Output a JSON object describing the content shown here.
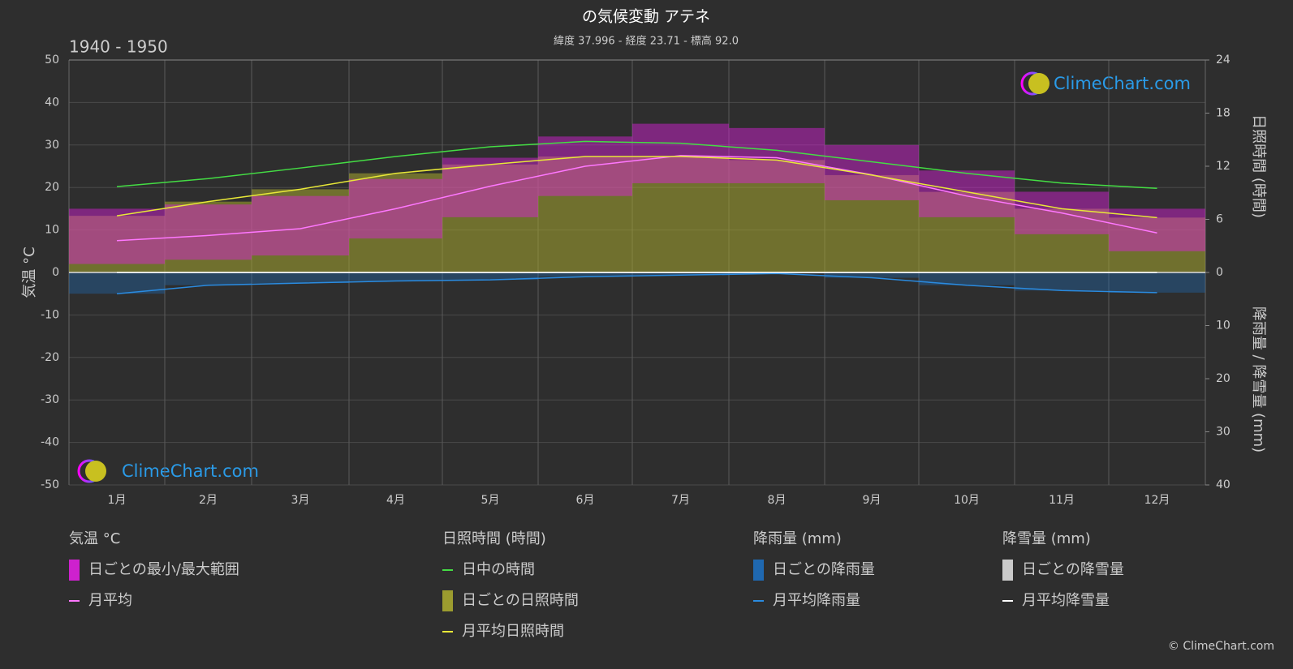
{
  "chart_data": {
    "type": "climate",
    "title": "の気候変動 アテネ",
    "subtitle": "緯度 37.996 - 経度 23.71 - 標高 92.0",
    "period": "1940 - 1950",
    "watermark": "ClimeChart.com",
    "copyright": "© ClimeChart.com",
    "categories": [
      "1月",
      "2月",
      "3月",
      "4月",
      "5月",
      "6月",
      "7月",
      "8月",
      "9月",
      "10月",
      "11月",
      "12月"
    ],
    "ylabel": "気温 °C",
    "y2label": "日照時間 (時間)",
    "y3label": "降雨量 / 降雪量 (mm)",
    "legend_titles": [
      "降雨量 (mm)",
      "降雪量 (mm)"
    ],
    "ylim": [
      -50,
      50
    ],
    "yticks": [
      -50,
      -40,
      -30,
      -20,
      -10,
      0,
      10,
      20,
      30,
      40,
      50
    ],
    "y2lim": [
      0,
      24
    ],
    "y2ticks": [
      0,
      6,
      12,
      18,
      24
    ],
    "y3lim": [
      0,
      40
    ],
    "y3ticks": [
      10,
      20,
      30,
      40
    ],
    "grid": true,
    "temp_range": {
      "name": "日ごとの最小/最大範囲",
      "color": "#e020e0",
      "min": [
        2,
        3,
        4,
        8,
        13,
        18,
        21,
        21,
        17,
        13,
        9,
        5
      ],
      "max": [
        15,
        16,
        18,
        22,
        27,
        32,
        35,
        34,
        30,
        24,
        19,
        15
      ]
    },
    "series": [
      {
        "name": "月平均",
        "color": "#ff77ff",
        "axis": "y",
        "values": [
          7.5,
          8.7,
          10.3,
          15,
          20.3,
          25,
          27.5,
          27,
          23,
          18,
          14,
          9.3
        ]
      },
      {
        "name": "日中の時間",
        "color": "#44dd44",
        "axis": "y2",
        "values": [
          9.7,
          10.6,
          11.8,
          13.1,
          14.2,
          14.8,
          14.6,
          13.8,
          12.5,
          11.2,
          10.1,
          9.5
        ]
      },
      {
        "name": "月平均日照時間",
        "color": "#e8e838",
        "axis": "y2",
        "values": [
          6.4,
          8.0,
          9.4,
          11.2,
          12.2,
          13.1,
          13.1,
          12.7,
          11.0,
          9.1,
          7.2,
          6.2
        ]
      },
      {
        "name": "月平均降雨量",
        "color": "#2a8be0",
        "axis": "y3",
        "values": [
          4.0,
          2.4,
          2.0,
          1.6,
          1.4,
          0.8,
          0.5,
          0.2,
          1.0,
          2.4,
          3.4,
          3.8
        ]
      },
      {
        "name": "月平均降雪量",
        "color": "#ffffff",
        "axis": "y3",
        "values": [
          0,
          0,
          0,
          0,
          0,
          0,
          0,
          0,
          0,
          0,
          0,
          0
        ]
      }
    ],
    "bars": [
      {
        "name": "日ごとの日照時間",
        "color": "#a8a830"
      },
      {
        "name": "日ごとの降雨量",
        "color": "#1e6fbf"
      },
      {
        "name": "日ごとの降雪量",
        "color": "#dddddd"
      }
    ]
  }
}
